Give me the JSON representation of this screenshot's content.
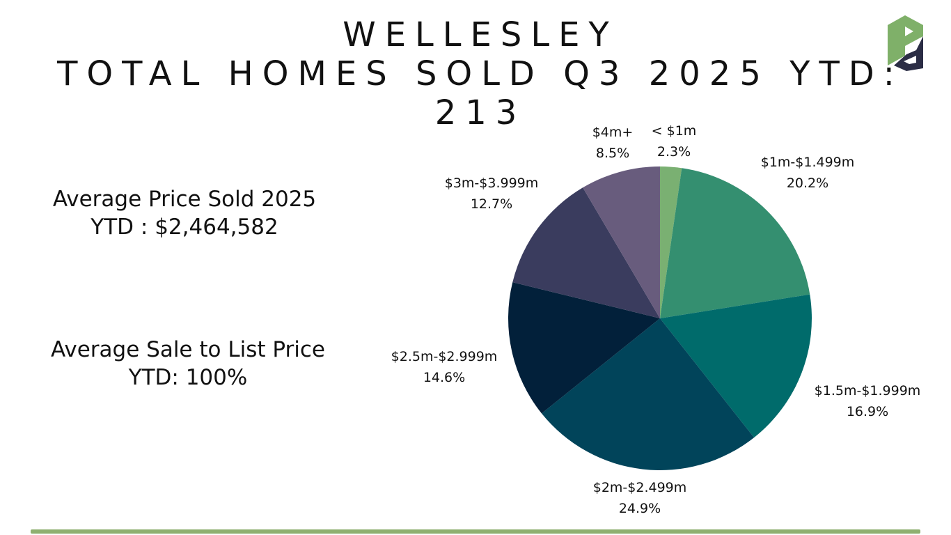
{
  "title": {
    "line1": "WELLESLEY",
    "line2": "TOTAL HOMES SOLD Q3 2025 YTD:",
    "line3": "213"
  },
  "stats": {
    "avg_price_line1": "Average Price Sold 2025",
    "avg_price_line2": "YTD : $2,464,582",
    "sale_to_list_line1": "Average Sale to List Price",
    "sale_to_list_line2": "YTD: 100%"
  },
  "logo": {
    "icon": "pd-logo-icon",
    "color_green": "#7fb069",
    "color_navy": "#2b2d45"
  },
  "chart_data": {
    "type": "pie",
    "title": "",
    "start_angle": "12 o'clock",
    "direction": "clockwise",
    "legend": "none",
    "categories": [
      "< $1m",
      "$1m-$1.499m",
      "$1.5m-$1.999m",
      "$2m-$2.499m",
      "$2.5m-$2.999m",
      "$3m-$3.999m",
      "$4m+"
    ],
    "values": [
      2.3,
      20.2,
      16.9,
      24.9,
      14.6,
      12.7,
      8.5
    ],
    "value_labels": [
      "2.3%",
      "20.2%",
      "16.9%",
      "24.9%",
      "14.6%",
      "12.7%",
      "8.5%"
    ],
    "colors": [
      "#7ab072",
      "#348f70",
      "#006b6b",
      "#01445a",
      "#02203a",
      "#3a3c5e",
      "#685c7d"
    ]
  }
}
